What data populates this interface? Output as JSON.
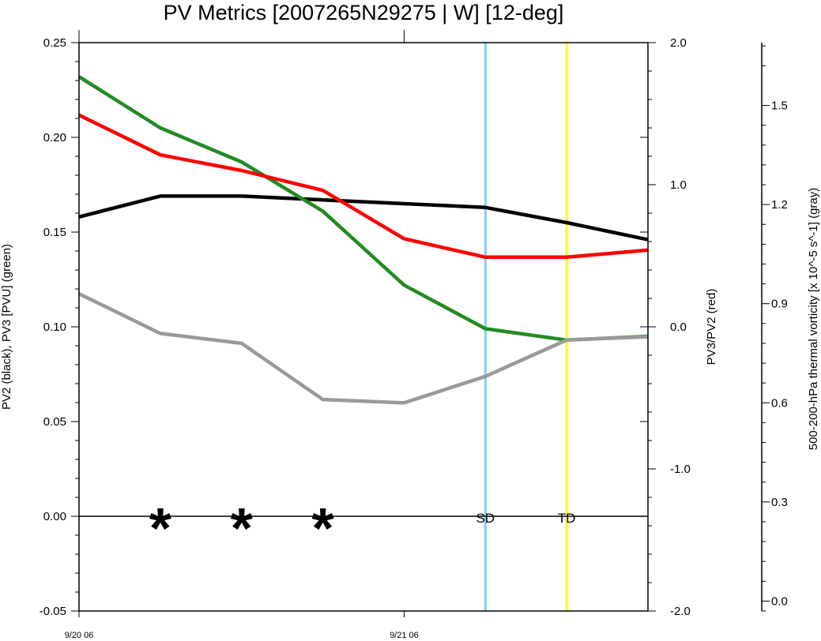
{
  "chart_data": {
    "type": "line",
    "title": "PV Metrics [2007265N29275 | W] [12-deg]",
    "left_axis": {
      "label": "PV2 (black), PV3 [PVU] (green)",
      "ylim": [
        -0.05,
        0.25
      ],
      "ticks": [
        "-0.05",
        "0.00",
        "0.05",
        "0.10",
        "0.15",
        "0.20",
        "0.25"
      ]
    },
    "right_axis": {
      "label": "PV3/PV2 (red)",
      "ylim": [
        -2.0,
        2.0
      ],
      "ticks": [
        "-2.0",
        "-1.0",
        "0.0",
        "1.0",
        "2.0"
      ]
    },
    "far_right_axis": {
      "label": "500-200-hPa thermal vorticity [x 10^-5 s^-1] (gray)",
      "ylim": [
        -0.03,
        1.69
      ],
      "ticks": [
        "0.0",
        "0.3",
        "0.6",
        "0.9",
        "1.2",
        "1.5"
      ]
    },
    "x_hours": [
      0,
      6,
      12,
      18,
      24,
      30,
      36,
      42
    ],
    "x_ticks": [
      {
        "hour": 0,
        "label": "9/20 06"
      },
      {
        "hour": 24,
        "label": "9/21 06"
      }
    ],
    "series": [
      {
        "color": "#000000",
        "axis": "left",
        "values": [
          0.158,
          0.169,
          0.169,
          0.167,
          0.165,
          0.163,
          0.155,
          0.146
        ]
      },
      {
        "color": "#228b22",
        "axis": "left",
        "values": [
          0.232,
          0.205,
          0.187,
          0.161,
          0.122,
          0.099,
          0.093,
          0.095
        ]
      },
      {
        "color": "#ff0000",
        "axis": "right",
        "values": [
          1.49,
          1.21,
          1.1,
          0.96,
          0.62,
          0.49,
          0.49,
          0.54
        ]
      },
      {
        "color": "#999999",
        "axis": "far_right",
        "values": [
          0.93,
          0.81,
          0.78,
          0.61,
          0.6,
          0.68,
          0.79,
          0.8
        ]
      }
    ],
    "zero_line": 0.0,
    "stars_at_hours": [
      6,
      12,
      18
    ],
    "vertical_markers": [
      {
        "hour": 30,
        "label": "SD",
        "color": "#87ceeb"
      },
      {
        "hour": 36,
        "label": "TD",
        "color": "#ffff00"
      }
    ],
    "grid": false,
    "legend": "none"
  }
}
